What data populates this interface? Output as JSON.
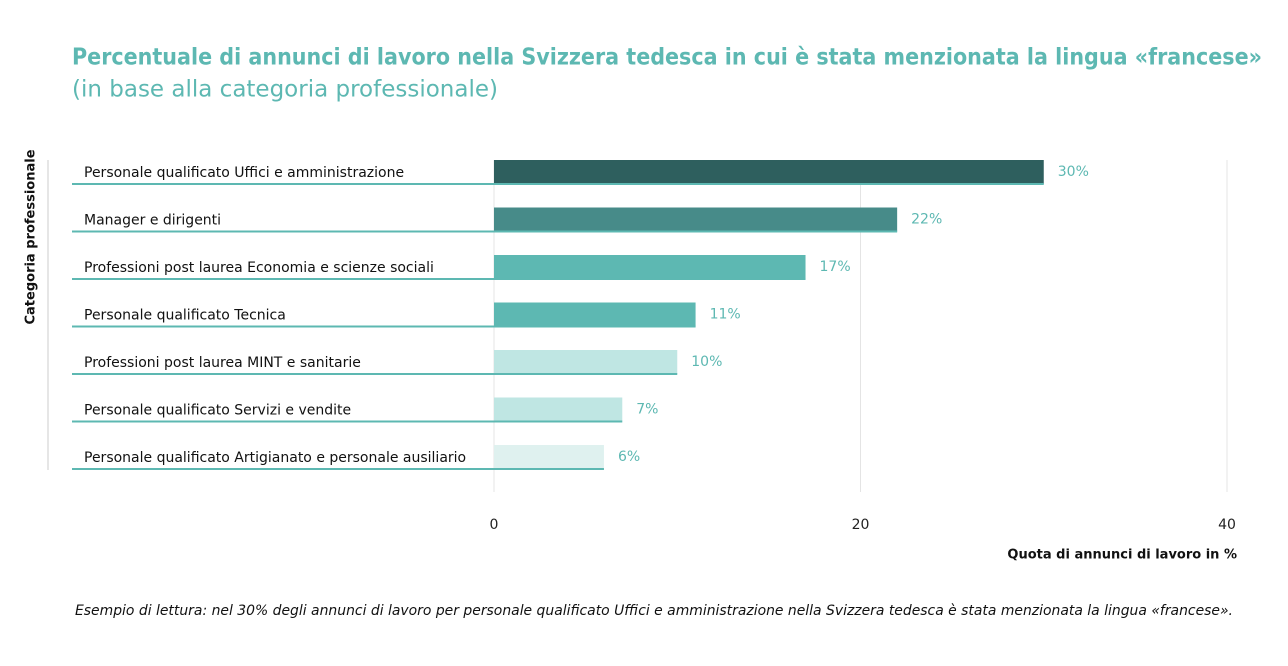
{
  "chart_data": {
    "type": "hbar",
    "title": "Percentuale di annunci di lavoro nella Svizzera tedesca in cui è stata menzionata la lingua «francese»",
    "subtitle": "(in base alla categoria professionale)",
    "y_label": "Categoria professionale",
    "x_label": "Quota di annunci di lavoro in %",
    "categories": [
      "Personale qualificato Uffici e amministrazione",
      "Manager e dirigenti",
      "Professioni post laurea Economia e scienze sociali",
      "Personale qualificato Tecnica",
      "Professioni post laurea MINT e sanitarie",
      "Personale qualificato Servizi e vendite",
      "Personale qualificato Artigianato e personale ausiliario"
    ],
    "values": [
      30,
      22,
      17,
      11,
      10,
      7,
      6
    ],
    "value_labels": [
      "30%",
      "22%",
      "17%",
      "11%",
      "10%",
      "7%",
      "6%"
    ],
    "colors": [
      "#2e5f5e",
      "#478b89",
      "#5db8b2",
      "#5db8b2",
      "#bfe6e3",
      "#bfe6e3",
      "#dff1ef"
    ],
    "xlim": [
      0,
      40
    ],
    "xticks": [
      0,
      20,
      40
    ],
    "grid": true,
    "note": "Esempio di lettura: nel 30% degli annunci di lavoro per personale qualificato Uffici e amministrazione nella Svizzera tedesca è stata menzionata la lingua «francese»."
  }
}
